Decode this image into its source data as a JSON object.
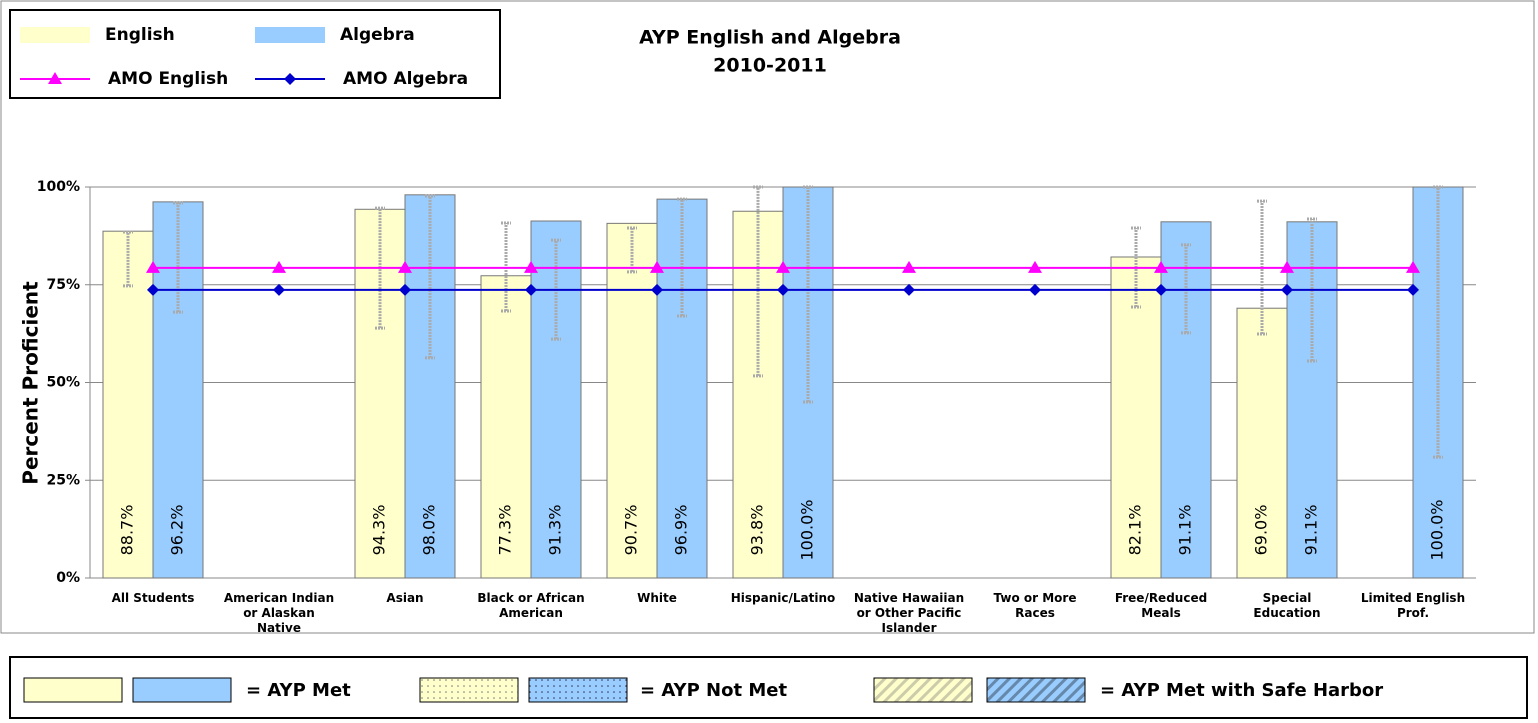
{
  "chart_data": {
    "type": "bar",
    "title": "AYP English and Algebra",
    "subtitle": "2010-2011",
    "y_label": "Percent Proficient",
    "categories": [
      "All Students",
      "American Indian\nor Alaskan\nNative",
      "Asian",
      "Black or African\nAmerican",
      "White",
      "Hispanic/Latino",
      "Native Hawaiian\nor Other Pacific\nIslander",
      "Two or More\nRaces",
      "Free/Reduced\nMeals",
      "Special\nEducation",
      "Limited English\nProf."
    ],
    "series": [
      {
        "name": "English",
        "type": "bar",
        "color": "#ffffcc",
        "values": [
          88.7,
          null,
          94.3,
          77.3,
          90.7,
          93.8,
          null,
          null,
          82.1,
          69.0,
          null
        ],
        "value_labels": [
          "88.7%",
          null,
          "94.3%",
          "77.3%",
          "90.7%",
          "93.8%",
          null,
          null,
          "82.1%",
          "69.0%",
          null
        ],
        "error_low": [
          74.7,
          null,
          63.9,
          68.3,
          78.3,
          51.7,
          null,
          null,
          69.3,
          62.4,
          null
        ],
        "error_high": [
          88.5,
          null,
          94.6,
          90.8,
          89.5,
          100,
          null,
          null,
          89.5,
          96.4,
          null
        ]
      },
      {
        "name": "Algebra",
        "type": "bar",
        "color": "#99ccff",
        "values": [
          96.2,
          null,
          98.0,
          91.3,
          96.9,
          100.0,
          null,
          null,
          91.1,
          91.1,
          100.0
        ],
        "value_labels": [
          "96.2%",
          null,
          "98.0%",
          "91.3%",
          "96.9%",
          "100.0%",
          null,
          null,
          "91.1%",
          "91.1%",
          "100.0%"
        ],
        "error_low": [
          68.0,
          null,
          56.3,
          61.1,
          67.0,
          45.0,
          null,
          null,
          62.7,
          55.5,
          30.9
        ],
        "error_high": [
          95.9,
          null,
          97.7,
          86.4,
          96.9,
          100,
          null,
          null,
          85.2,
          91.8,
          100
        ]
      },
      {
        "name": "AMO English",
        "type": "line",
        "marker": "triangle",
        "color": "#ff00ff",
        "values": [
          79.3,
          79.3,
          79.3,
          79.3,
          79.3,
          79.3,
          79.3,
          79.3,
          79.3,
          79.3,
          79.3
        ]
      },
      {
        "name": "AMO Algebra",
        "type": "line",
        "marker": "diamond",
        "color": "#0000cc",
        "values": [
          73.7,
          73.7,
          73.7,
          73.7,
          73.7,
          73.7,
          73.7,
          73.7,
          73.7,
          73.7,
          73.7
        ]
      }
    ],
    "ylim": [
      0,
      100
    ],
    "yticks": [
      {
        "value": 0,
        "label": "0%"
      },
      {
        "value": 25,
        "label": "25%"
      },
      {
        "value": 50,
        "label": "50%"
      },
      {
        "value": 75,
        "label": "75%"
      },
      {
        "value": 100,
        "label": "100%"
      }
    ],
    "grid": true,
    "legend_position": "top-left",
    "key": [
      "= AYP Met",
      "= AYP Not Met",
      "= AYP Met with Safe Harbor"
    ]
  }
}
